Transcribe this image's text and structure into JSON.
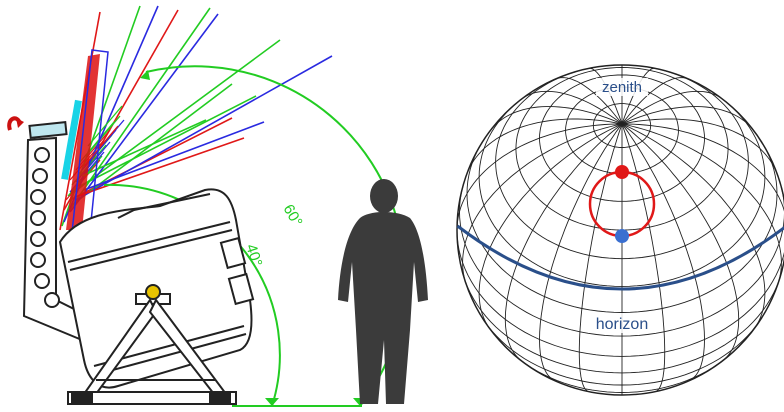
{
  "left_panel": {
    "angle_labels": {
      "inner": "40°",
      "outer": "60°"
    },
    "colors": {
      "red_rays": "#e01818",
      "green_rays": "#22cc22",
      "blue_rays": "#2a2ae0",
      "mirror": "#dd1111",
      "cyan_detector": "#19d3e6",
      "arc": "#22cc22",
      "rotation_arrow": "#cc1111",
      "person": "#3b3b3b",
      "frame": "#222222",
      "mount_pivot": "#e8c300"
    },
    "icons": [
      "rotation-arrow-icon",
      "person-silhouette-icon"
    ]
  },
  "right_panel": {
    "top_label": "zenith",
    "bottom_label": "horizon",
    "colors": {
      "grid": "#222222",
      "horizon": "#2a4f8a",
      "circle": "#e01818",
      "top_point": "#e01818",
      "bottom_point": "#3a6fd0",
      "label_text": "#2a4f8a"
    }
  }
}
